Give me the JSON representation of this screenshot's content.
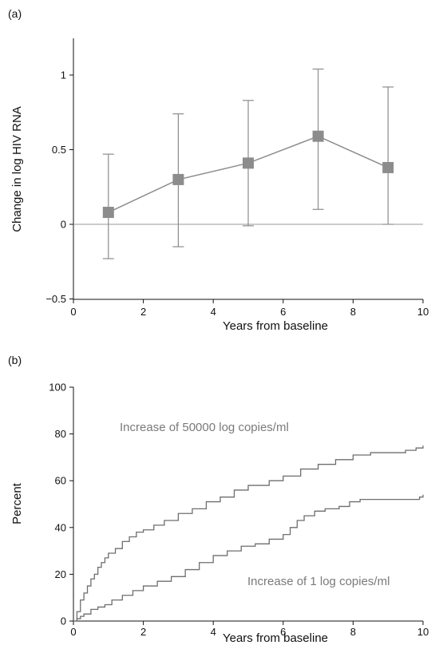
{
  "chart_data": [
    {
      "type": "scatter",
      "panel_label": "(a)",
      "xlabel": "Years from baseline",
      "ylabel": "Change in log HIV RNA",
      "xlim": [
        0,
        10
      ],
      "ylim": [
        -0.5,
        1.25
      ],
      "xticks": [
        0,
        2,
        4,
        6,
        8,
        10
      ],
      "yticks": [
        -0.5,
        0,
        0.5,
        1
      ],
      "ytick_labels": [
        "−0.5",
        "0",
        "0.5",
        "1"
      ],
      "reference_line_y": 0,
      "marker": "square",
      "connected": true,
      "error_bars": true,
      "color": "#8c8c8c",
      "points": [
        {
          "x": 1,
          "y": 0.08,
          "lower": -0.23,
          "upper": 0.47
        },
        {
          "x": 3,
          "y": 0.3,
          "lower": -0.15,
          "upper": 0.74
        },
        {
          "x": 5,
          "y": 0.41,
          "lower": -0.01,
          "upper": 0.83
        },
        {
          "x": 7,
          "y": 0.59,
          "lower": 0.1,
          "upper": 1.04
        },
        {
          "x": 9,
          "y": 0.38,
          "lower": 0.0,
          "upper": 0.92
        }
      ]
    },
    {
      "type": "line",
      "step": true,
      "panel_label": "(b)",
      "xlabel": "Years from baseline",
      "ylabel": "Percent",
      "xlim": [
        0,
        10
      ],
      "ylim": [
        0,
        100
      ],
      "xticks": [
        0,
        2,
        4,
        6,
        8,
        10
      ],
      "yticks": [
        0,
        20,
        40,
        60,
        80,
        100
      ],
      "color": "#6e6e6e",
      "series": [
        {
          "name": "Increase of 50000 log copies/ml",
          "x": [
            0,
            0.1,
            0.2,
            0.3,
            0.4,
            0.5,
            0.6,
            0.7,
            0.8,
            0.9,
            1.0,
            1.2,
            1.4,
            1.6,
            1.8,
            2.0,
            2.3,
            2.6,
            3.0,
            3.4,
            3.8,
            4.2,
            4.6,
            5.0,
            5.6,
            6.0,
            6.5,
            7.0,
            7.5,
            8.0,
            8.5,
            9.0,
            9.5,
            9.8,
            10.0
          ],
          "y": [
            0,
            4,
            9,
            12,
            15,
            18,
            20,
            23,
            25,
            27,
            29,
            31,
            34,
            36,
            38,
            39,
            41,
            43,
            46,
            48,
            51,
            53,
            56,
            58,
            60,
            62,
            65,
            67,
            69,
            71,
            72,
            72,
            73,
            74,
            75
          ]
        },
        {
          "name": "Increase of 1 log copies/ml",
          "x": [
            0,
            0.1,
            0.2,
            0.3,
            0.5,
            0.7,
            0.9,
            1.1,
            1.4,
            1.7,
            2.0,
            2.4,
            2.8,
            3.2,
            3.6,
            4.0,
            4.4,
            4.8,
            5.2,
            5.6,
            6.0,
            6.2,
            6.4,
            6.6,
            6.9,
            7.2,
            7.6,
            7.9,
            8.2,
            8.6,
            9.0,
            9.4,
            9.8,
            9.9,
            10.0
          ],
          "y": [
            0,
            1,
            2,
            3,
            5,
            6,
            7,
            9,
            11,
            13,
            15,
            17,
            19,
            22,
            25,
            28,
            30,
            32,
            33,
            35,
            37,
            40,
            43,
            45,
            47,
            48,
            49,
            51,
            52,
            52,
            52,
            52,
            52,
            53,
            54
          ]
        }
      ]
    }
  ]
}
